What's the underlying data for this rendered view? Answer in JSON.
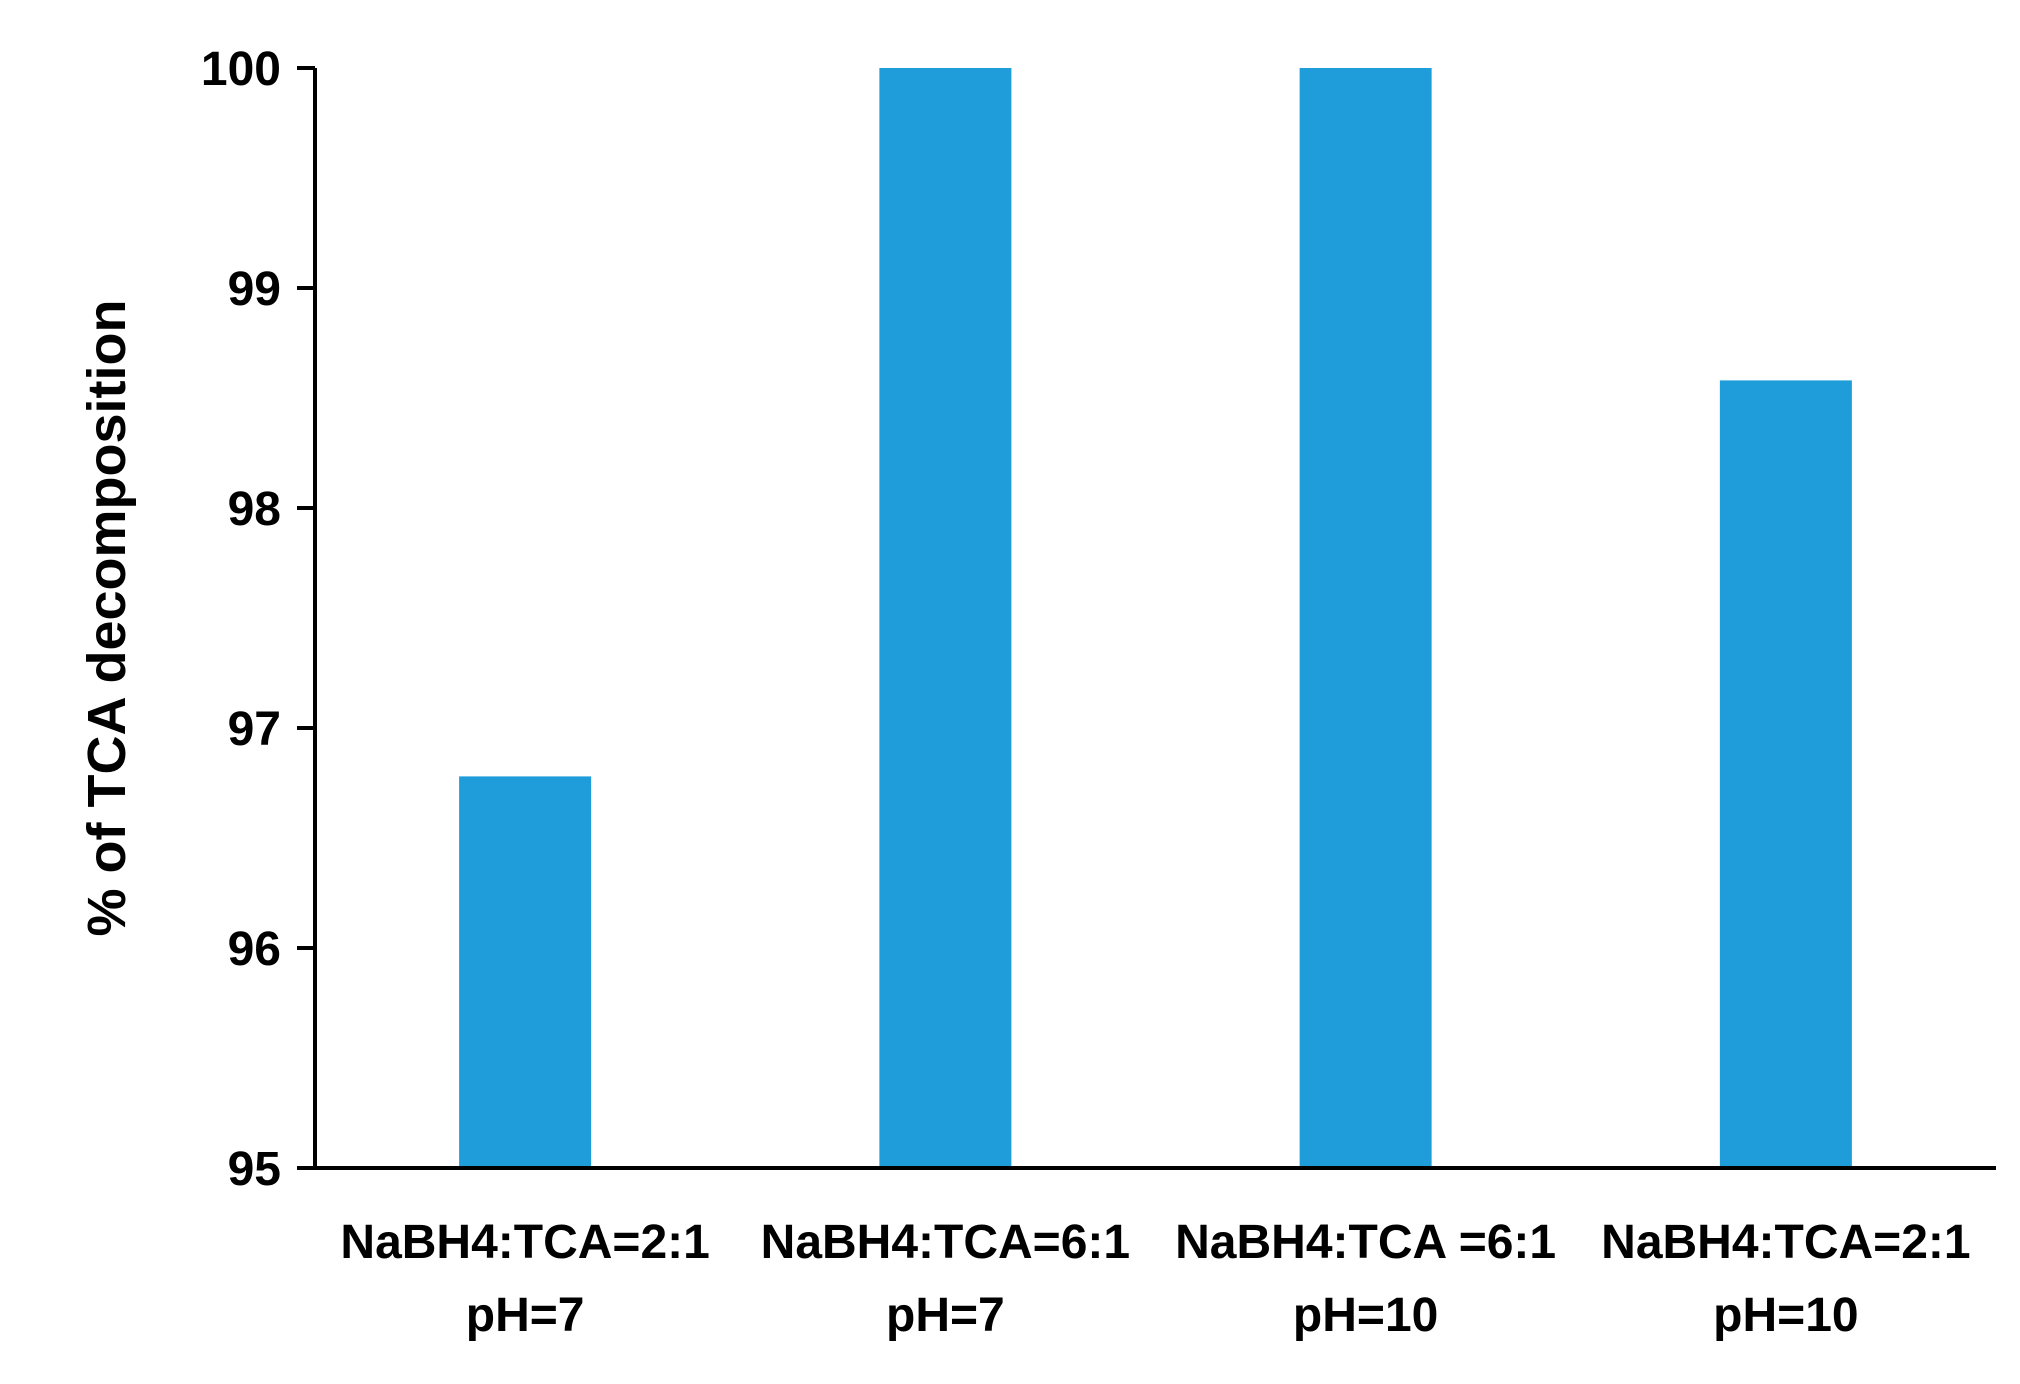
{
  "chart_data": {
    "type": "bar",
    "title": "",
    "xlabel": "",
    "ylabel": "% of TCA decomposition",
    "ylim": [
      95,
      100
    ],
    "yticks": [
      "95",
      "96",
      "97",
      "98",
      "99",
      "100"
    ],
    "grid": false,
    "legend": "none",
    "categories": [
      [
        "NaBH4:TCA=2:1",
        "pH=7"
      ],
      [
        "NaBH4:TCA=6:1",
        "pH=7"
      ],
      [
        "NaBH4:TCA =6:1",
        "pH=10"
      ],
      [
        "NaBH4:TCA=2:1",
        "pH=10"
      ]
    ],
    "values": [
      96.78,
      100,
      100,
      98.58
    ],
    "bar_color": "#1f9cda"
  }
}
